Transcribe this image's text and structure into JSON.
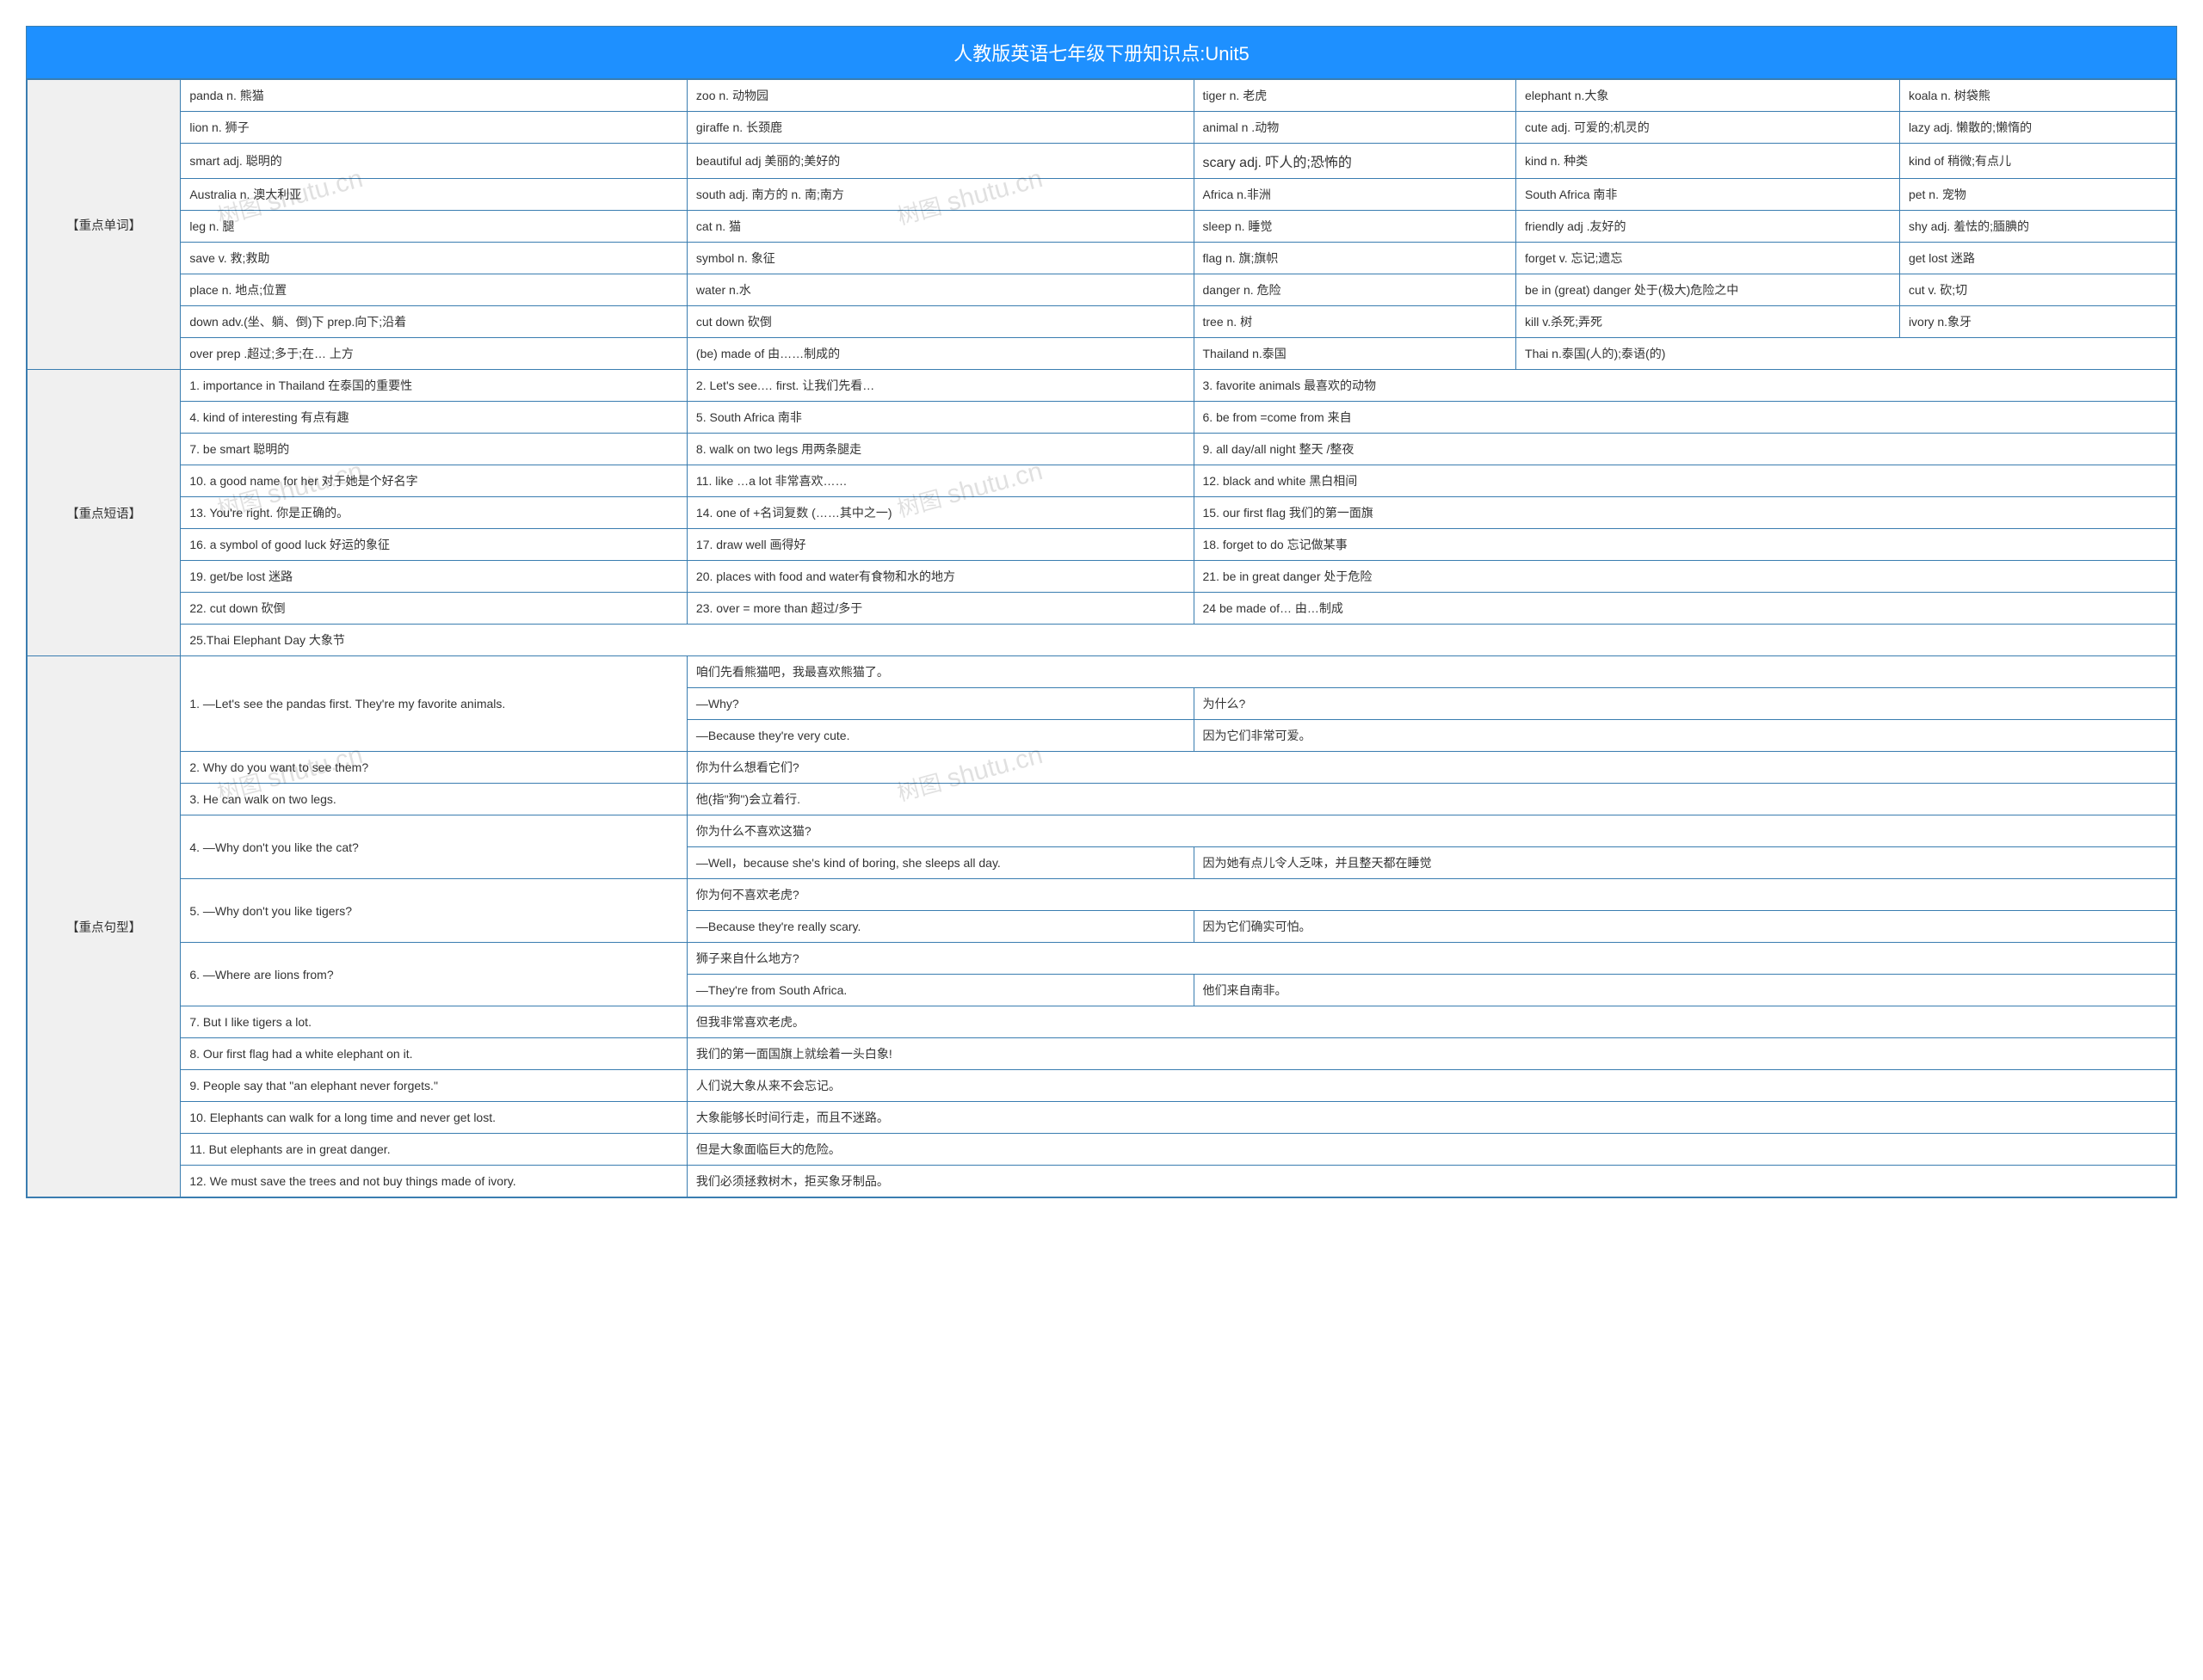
{
  "watermark_text_cn": "树图",
  "watermark_text_en": "shutu.cn",
  "title": "人教版英语七年级下册知识点:Unit5",
  "colors": {
    "header_bg": "#1e90ff",
    "header_fg": "#ffffff",
    "border": "#3a7db0",
    "section_bg": "#f0f0f0",
    "text": "#333333",
    "watermark": "rgba(0,0,0,0.12)"
  },
  "sections": {
    "vocab": {
      "label": "【重点单词】",
      "rows": [
        [
          "panda n. 熊猫",
          "zoo n. 动物园",
          "tiger n. 老虎",
          "elephant n.大象",
          "koala n. 树袋熊"
        ],
        [
          "lion n. 狮子",
          "giraffe n. 长颈鹿",
          "animal n .动物",
          "cute adj. 可爱的;机灵的",
          "lazy adj. 懒散的;懒惰的"
        ],
        [
          "smart adj. 聪明的",
          "beautiful adj 美丽的;美好的",
          "scary adj. 吓人的;恐怖的",
          "kind n. 种类",
          "kind of 稍微;有点儿"
        ],
        [
          "Australia n. 澳大利亚",
          "south adj. 南方的 n. 南;南方",
          "Africa n.非洲",
          "South Africa 南非",
          "pet n. 宠物"
        ],
        [
          "leg n. 腿",
          "cat n. 猫",
          "sleep n. 睡觉",
          "friendly adj .友好的",
          "shy adj. 羞怯的;腼腆的"
        ],
        [
          "save v. 救;救助",
          "symbol n. 象征",
          "flag n. 旗;旗帜",
          "forget v. 忘记;遗忘",
          "get lost 迷路"
        ],
        [
          "place n. 地点;位置",
          "water n.水",
          "danger n. 危险",
          "be in (great) danger 处于(极大)危险之中",
          "cut v. 砍;切"
        ],
        [
          "down adv.(坐、躺、倒)下 prep.向下;沿着",
          "cut down 砍倒",
          "tree n. 树",
          "kill v.杀死;弄死",
          "ivory n.象牙"
        ],
        [
          "over prep .超过;多于;在… 上方",
          "(be) made of 由……制成的",
          "Thailand n.泰国",
          "Thai n.泰国(人的);泰语(的)",
          ""
        ]
      ]
    },
    "phrases": {
      "label": "【重点短语】",
      "rows": [
        [
          "1. importance in Thailand 在泰国的重要性",
          "2. Let's see.… first. 让我们先看…",
          "3. favorite animals 最喜欢的动物"
        ],
        [
          "4. kind of interesting 有点有趣",
          "5. South Africa 南非",
          "6. be from =come from 来自"
        ],
        [
          "7. be smart 聪明的",
          "8. walk on two legs 用两条腿走",
          "9. all day/all night 整天 /整夜"
        ],
        [
          "10. a good name for her 对于她是个好名字",
          "11. like …a lot 非常喜欢……",
          "12. black and white 黑白相间"
        ],
        [
          "13. You're right. 你是正确的。",
          "14. one of +名词复数 (……其中之一)",
          "15. our first flag 我们的第一面旗"
        ],
        [
          "16. a symbol of good luck 好运的象征",
          "17. draw well 画得好",
          "18. forget to do 忘记做某事"
        ],
        [
          "19. get/be lost 迷路",
          "20. places with food and water有食物和水的地方",
          "21. be in great danger 处于危险"
        ],
        [
          "22. cut down 砍倒",
          "23. over = more than 超过/多于",
          "24 be made of… 由…制成"
        ],
        [
          "25.Thai Elephant Day 大象节",
          "",
          ""
        ]
      ]
    },
    "sentences": {
      "label": "【重点句型】",
      "items": [
        {
          "en": "1. —Let's see the pandas first. They're my favorite animals.",
          "sub": [
            {
              "a": "咱们先看熊猫吧，我最喜欢熊猫了。",
              "b": ""
            },
            {
              "a": "—Why?",
              "b": "为什么?"
            },
            {
              "a": "—Because they're very cute.",
              "b": "因为它们非常可爱。"
            }
          ]
        },
        {
          "en": "2. Why do you want to see them?",
          "sub": [
            {
              "a": "你为什么想看它们?",
              "b": ""
            }
          ]
        },
        {
          "en": "3. He can walk on two legs.",
          "sub": [
            {
              "a": "他(指\"狗\")会立着行.",
              "b": ""
            }
          ]
        },
        {
          "en": "4. —Why don't you like the cat?",
          "sub": [
            {
              "a": "你为什么不喜欢这猫?",
              "b": ""
            },
            {
              "a": "—Well，because she's kind of boring, she sleeps all day.",
              "b": "因为她有点儿令人乏味，并且整天都在睡觉"
            }
          ]
        },
        {
          "en": "5. —Why don't you like tigers?",
          "sub": [
            {
              "a": "你为何不喜欢老虎?",
              "b": ""
            },
            {
              "a": "—Because they're really scary.",
              "b": "因为它们确实可怕。"
            }
          ]
        },
        {
          "en": "6. —Where are lions from?",
          "sub": [
            {
              "a": "狮子来自什么地方?",
              "b": ""
            },
            {
              "a": "—They're from South Africa.",
              "b": "他们来自南非。"
            }
          ]
        },
        {
          "en": "7. But I like tigers a lot.",
          "sub": [
            {
              "a": "但我非常喜欢老虎。",
              "b": ""
            }
          ]
        },
        {
          "en": "8. Our first flag had a white elephant on it.",
          "sub": [
            {
              "a": "我们的第一面国旗上就绘着一头白象!",
              "b": ""
            }
          ]
        },
        {
          "en": "9. People say that \"an elephant never forgets.\"",
          "sub": [
            {
              "a": "人们说大象从来不会忘记。",
              "b": ""
            }
          ]
        },
        {
          "en": "10. Elephants can walk for a long time and never get lost.",
          "sub": [
            {
              "a": "大象能够长时间行走，而且不迷路。",
              "b": ""
            }
          ]
        },
        {
          "en": "11. But elephants are in great danger.",
          "sub": [
            {
              "a": "但是大象面临巨大的危险。",
              "b": ""
            }
          ]
        },
        {
          "en": "12. We must save the trees and not buy things made of ivory.",
          "sub": [
            {
              "a": "我们必须拯救树木，拒买象牙制品。",
              "b": ""
            }
          ]
        }
      ]
    }
  }
}
